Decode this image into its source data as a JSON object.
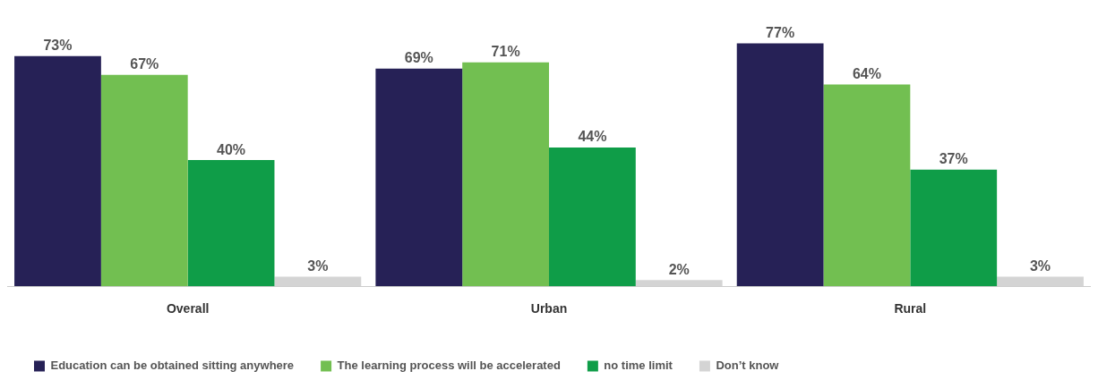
{
  "chart_data": {
    "type": "bar",
    "categories": [
      "Overall",
      "Urban",
      "Rural"
    ],
    "series": [
      {
        "name": "Education can be obtained sitting anywhere",
        "color": "#262156",
        "values": [
          73,
          69,
          77
        ],
        "value_labels": [
          "73%",
          "69%",
          "77%"
        ]
      },
      {
        "name": "The learning process will be accelerated",
        "color": "#72bf51",
        "values": [
          67,
          71,
          64
        ],
        "value_labels": [
          "67%",
          "71%",
          "64%"
        ]
      },
      {
        "name": "no time limit",
        "color": "#0f9d48",
        "values": [
          40,
          44,
          37
        ],
        "value_labels": [
          "40%",
          "44%",
          "37%"
        ]
      },
      {
        "name": "Don’t know",
        "color": "#d4d4d4",
        "values": [
          3,
          2,
          3
        ],
        "value_labels": [
          "3%",
          "2%",
          "3%"
        ]
      }
    ],
    "legend": "bottom",
    "grid": false
  }
}
